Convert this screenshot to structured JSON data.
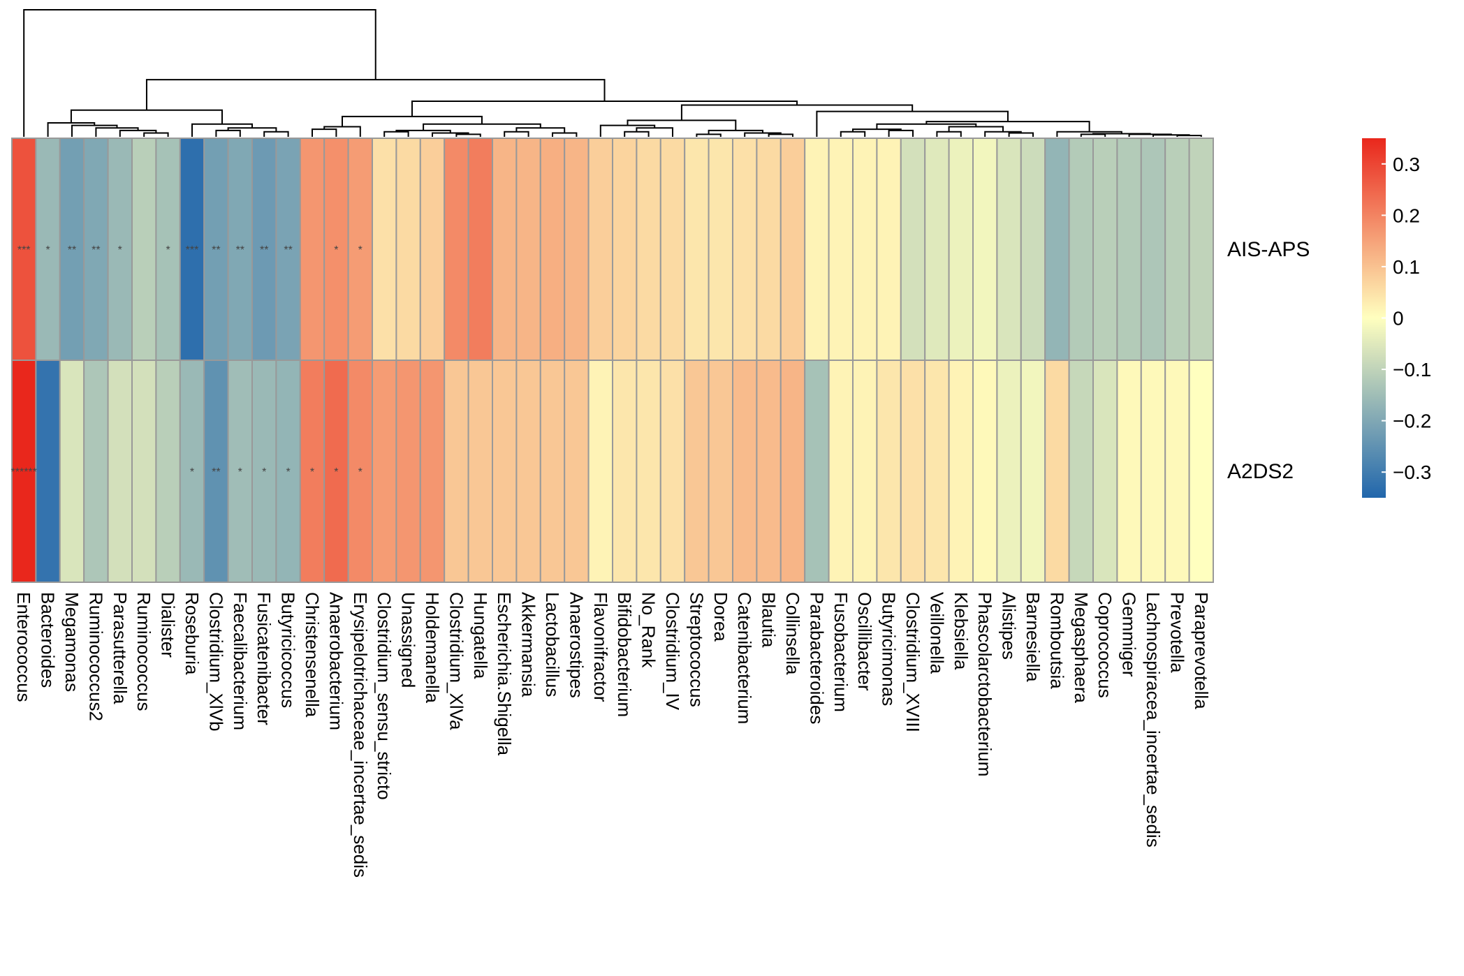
{
  "chart_data": {
    "type": "heatmap",
    "rows": [
      "AIS-APS",
      "A2DS2"
    ],
    "columns": [
      "Enterococcus",
      "Bacteroides",
      "Megamonas",
      "Ruminococcus2",
      "Parasutterella",
      "Ruminococcus",
      "Dialister",
      "Roseburia",
      "Clostridium_XlVb",
      "Faecalibacterium",
      "Fusicatenibacter",
      "Butyricicoccus",
      "Christensenella",
      "Anaerobacterium",
      "Erysipelotrichaceae_incertae_sedis",
      "Clostridium_sensu_stricto",
      "Unassigned",
      "Holdemanella",
      "Clostridium_XlVa",
      "Hungatella",
      "Escherichia.Shigella",
      "Akkermansia",
      "Lactobacillus",
      "Anaerostipes",
      "Flavonifractor",
      "Bifidobacterium",
      "No_Rank",
      "Clostridium_IV",
      "Streptococcus",
      "Dorea",
      "Catenibacterium",
      "Blautia",
      "Collinsella",
      "Parabacteroides",
      "Fusobacterium",
      "Oscillibacter",
      "Butyricimonas",
      "Clostridium_XVIII",
      "Veillonella",
      "Klebsiella",
      "Phascolarctobacterium",
      "Alistipes",
      "Barnesiella",
      "Romboutsia",
      "Megasphaera",
      "Coprococcus",
      "Gemmiger",
      "Lachnospiracea_incertae_sedis",
      "Prevotella",
      "Paraprevotella"
    ],
    "values": [
      [
        0.28,
        -0.16,
        -0.22,
        -0.2,
        -0.16,
        -0.11,
        -0.14,
        -0.33,
        -0.22,
        -0.2,
        -0.23,
        -0.21,
        0.17,
        0.18,
        0.16,
        0.05,
        0.06,
        0.08,
        0.19,
        0.21,
        0.12,
        0.12,
        0.13,
        0.12,
        0.08,
        0.07,
        0.06,
        0.06,
        0.04,
        0.04,
        0.05,
        0.06,
        0.08,
        0.02,
        0.02,
        0.02,
        0.02,
        -0.07,
        -0.05,
        -0.03,
        -0.02,
        -0.06,
        -0.08,
        -0.17,
        -0.12,
        -0.11,
        -0.12,
        -0.13,
        -0.11,
        -0.1
      ],
      [
        0.35,
        -0.32,
        -0.06,
        -0.13,
        -0.07,
        -0.07,
        -0.11,
        -0.16,
        -0.25,
        -0.15,
        -0.16,
        -0.17,
        0.21,
        0.24,
        0.19,
        0.16,
        0.17,
        0.17,
        0.09,
        0.09,
        0.09,
        0.09,
        0.09,
        0.09,
        0.02,
        0.04,
        0.04,
        0.05,
        0.09,
        0.09,
        0.11,
        0.11,
        0.12,
        -0.14,
        0.02,
        0.02,
        0.04,
        0.05,
        0.04,
        0.02,
        0.01,
        -0.03,
        -0.02,
        0.06,
        -0.09,
        -0.06,
        0.01,
        0.01,
        0.01,
        0.0
      ]
    ],
    "significance": [
      [
        "***",
        "*",
        "**",
        "**",
        "*",
        "",
        "*",
        "***",
        "**",
        "**",
        "**",
        "**",
        "",
        "*",
        "*",
        "",
        "",
        "",
        "",
        "",
        "",
        "",
        "",
        "",
        "",
        "",
        "",
        "",
        "",
        "",
        "",
        "",
        "",
        "",
        "",
        "",
        "",
        "",
        "",
        "",
        "",
        "",
        "",
        "",
        "",
        "",
        "",
        "",
        "",
        ""
      ],
      [
        "******",
        "",
        "",
        "",
        "",
        "",
        "",
        "*",
        "**",
        "*",
        "*",
        "*",
        "*",
        "*",
        "*",
        "",
        "",
        "",
        "",
        "",
        "",
        "",
        "",
        "",
        "",
        "",
        "",
        "",
        "",
        "",
        "",
        "",
        "",
        "",
        "",
        "",
        "",
        "",
        "",
        "",
        "",
        "",
        "",
        "",
        "",
        "",
        "",
        "",
        "",
        ""
      ]
    ],
    "color_scale": {
      "min": -0.35,
      "max": 0.35,
      "low": "#2166ac",
      "mid": "#ffffbf",
      "high": "#e9271c"
    },
    "legend": {
      "ticks": [
        "0.3",
        "0.2",
        "0.1",
        "0",
        "−0.1",
        "−0.2",
        "−0.3"
      ],
      "tick_values": [
        0.3,
        0.2,
        0.1,
        0,
        -0.1,
        -0.2,
        -0.3
      ],
      "position": "right"
    },
    "cell_border_color": "#999999",
    "dendrogram": {
      "orientation": "top",
      "line_color": "#000000"
    }
  }
}
